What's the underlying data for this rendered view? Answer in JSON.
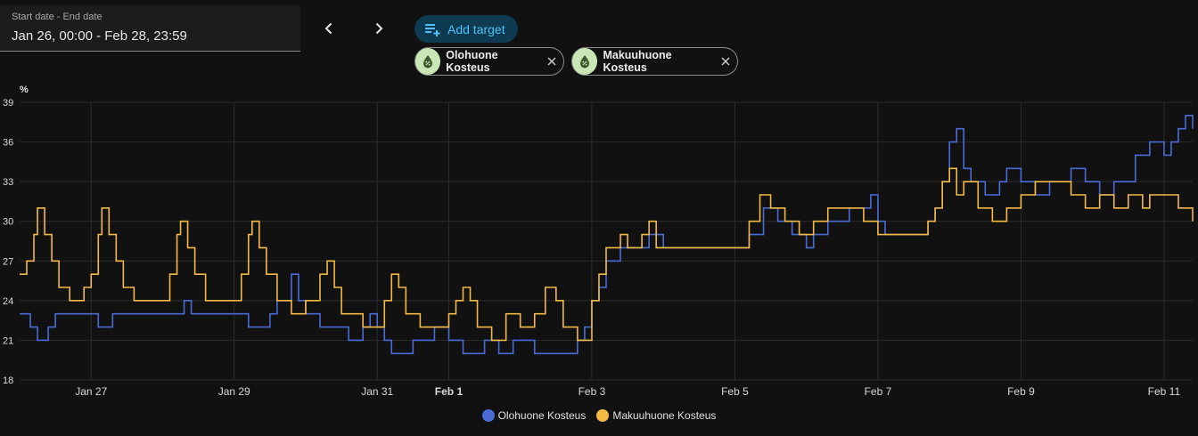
{
  "date_range": {
    "label": "Start date - End date",
    "value": "Jan 26, 00:00 - Feb 28, 23:59"
  },
  "add_target_label": "Add target",
  "chips": [
    {
      "label": "Olohuone Kosteus",
      "icon": "water-percent-icon"
    },
    {
      "label": "Makuuhuone Kosteus",
      "icon": "water-percent-icon"
    }
  ],
  "colors": {
    "accent": "#4fc0f7",
    "series1": "#4a6bd6",
    "series2": "#f4b942"
  },
  "chart_data": {
    "type": "line",
    "ylabel": "%",
    "ylim": [
      18,
      39
    ],
    "yticks": [
      18,
      21,
      24,
      27,
      30,
      33,
      36,
      39
    ],
    "xlim": [
      0,
      16.4
    ],
    "xticks": [
      {
        "x": 1,
        "label": "Jan 27",
        "bold": false
      },
      {
        "x": 3,
        "label": "Jan 29",
        "bold": false
      },
      {
        "x": 5,
        "label": "Jan 31",
        "bold": false
      },
      {
        "x": 6,
        "label": "Feb 1",
        "bold": true
      },
      {
        "x": 8,
        "label": "Feb 3",
        "bold": false
      },
      {
        "x": 10,
        "label": "Feb 5",
        "bold": false
      },
      {
        "x": 12,
        "label": "Feb 7",
        "bold": false
      },
      {
        "x": 14,
        "label": "Feb 9",
        "bold": false
      },
      {
        "x": 16,
        "label": "Feb 11",
        "bold": false
      }
    ],
    "grid": true,
    "legend_position": "bottom",
    "series": [
      {
        "name": "Olohuone Kosteus",
        "points": [
          [
            0,
            23
          ],
          [
            0.15,
            22
          ],
          [
            0.25,
            21
          ],
          [
            0.4,
            22
          ],
          [
            0.5,
            23
          ],
          [
            1.0,
            23
          ],
          [
            1.1,
            22
          ],
          [
            1.3,
            23
          ],
          [
            2.2,
            23
          ],
          [
            2.3,
            24
          ],
          [
            2.4,
            23
          ],
          [
            3.0,
            23
          ],
          [
            3.2,
            22
          ],
          [
            3.5,
            23
          ],
          [
            3.6,
            24
          ],
          [
            3.8,
            26
          ],
          [
            3.9,
            24
          ],
          [
            4.0,
            23
          ],
          [
            4.2,
            22
          ],
          [
            4.6,
            21
          ],
          [
            4.8,
            22
          ],
          [
            4.9,
            23
          ],
          [
            5.0,
            22
          ],
          [
            5.1,
            21
          ],
          [
            5.2,
            20
          ],
          [
            5.5,
            21
          ],
          [
            5.8,
            22
          ],
          [
            6.0,
            21
          ],
          [
            6.2,
            20
          ],
          [
            6.5,
            21
          ],
          [
            6.7,
            20
          ],
          [
            6.9,
            21
          ],
          [
            7.2,
            20
          ],
          [
            7.6,
            20
          ],
          [
            7.8,
            21
          ],
          [
            7.9,
            22
          ],
          [
            8.0,
            24
          ],
          [
            8.1,
            25
          ],
          [
            8.2,
            27
          ],
          [
            8.4,
            28
          ],
          [
            8.8,
            29
          ],
          [
            9.0,
            28
          ],
          [
            9.5,
            28
          ],
          [
            9.8,
            28
          ],
          [
            10.0,
            28
          ],
          [
            10.2,
            29
          ],
          [
            10.4,
            31
          ],
          [
            10.6,
            30
          ],
          [
            10.8,
            29
          ],
          [
            11.0,
            28
          ],
          [
            11.1,
            29
          ],
          [
            11.3,
            30
          ],
          [
            11.6,
            31
          ],
          [
            11.8,
            31
          ],
          [
            11.9,
            32
          ],
          [
            12.0,
            30
          ],
          [
            12.1,
            29
          ],
          [
            12.5,
            29
          ],
          [
            12.7,
            30
          ],
          [
            12.8,
            31
          ],
          [
            12.9,
            33
          ],
          [
            13.0,
            36
          ],
          [
            13.1,
            37
          ],
          [
            13.2,
            34
          ],
          [
            13.3,
            33
          ],
          [
            13.5,
            32
          ],
          [
            13.7,
            33
          ],
          [
            13.8,
            34
          ],
          [
            14.0,
            33
          ],
          [
            14.2,
            32
          ],
          [
            14.4,
            33
          ],
          [
            14.7,
            34
          ],
          [
            14.9,
            33
          ],
          [
            15.1,
            32
          ],
          [
            15.3,
            33
          ],
          [
            15.6,
            35
          ],
          [
            15.8,
            36
          ],
          [
            16.0,
            35
          ],
          [
            16.1,
            36
          ],
          [
            16.2,
            37
          ],
          [
            16.3,
            38
          ],
          [
            16.4,
            37
          ]
        ]
      },
      {
        "name": "Makuuhuone Kosteus",
        "points": [
          [
            0,
            26
          ],
          [
            0.1,
            27
          ],
          [
            0.2,
            29
          ],
          [
            0.25,
            31
          ],
          [
            0.35,
            29
          ],
          [
            0.45,
            27
          ],
          [
            0.55,
            25
          ],
          [
            0.7,
            24
          ],
          [
            0.9,
            25
          ],
          [
            1.0,
            26
          ],
          [
            1.1,
            29
          ],
          [
            1.15,
            31
          ],
          [
            1.25,
            29
          ],
          [
            1.35,
            27
          ],
          [
            1.45,
            25
          ],
          [
            1.6,
            24
          ],
          [
            2.0,
            24
          ],
          [
            2.1,
            26
          ],
          [
            2.2,
            29
          ],
          [
            2.25,
            30
          ],
          [
            2.35,
            28
          ],
          [
            2.45,
            26
          ],
          [
            2.6,
            24
          ],
          [
            3.0,
            24
          ],
          [
            3.1,
            26
          ],
          [
            3.2,
            29
          ],
          [
            3.25,
            30
          ],
          [
            3.35,
            28
          ],
          [
            3.45,
            26
          ],
          [
            3.6,
            24
          ],
          [
            3.8,
            23
          ],
          [
            4.0,
            24
          ],
          [
            4.2,
            26
          ],
          [
            4.3,
            27
          ],
          [
            4.4,
            25
          ],
          [
            4.5,
            23
          ],
          [
            4.8,
            22
          ],
          [
            5.0,
            22
          ],
          [
            5.1,
            24
          ],
          [
            5.2,
            26
          ],
          [
            5.3,
            25
          ],
          [
            5.4,
            23
          ],
          [
            5.6,
            22
          ],
          [
            6.0,
            23
          ],
          [
            6.1,
            24
          ],
          [
            6.2,
            25
          ],
          [
            6.3,
            24
          ],
          [
            6.4,
            22
          ],
          [
            6.6,
            21
          ],
          [
            6.8,
            23
          ],
          [
            7.0,
            22
          ],
          [
            7.2,
            23
          ],
          [
            7.35,
            25
          ],
          [
            7.5,
            24
          ],
          [
            7.6,
            22
          ],
          [
            7.8,
            21
          ],
          [
            8.0,
            24
          ],
          [
            8.1,
            26
          ],
          [
            8.2,
            28
          ],
          [
            8.4,
            29
          ],
          [
            8.5,
            28
          ],
          [
            8.7,
            29
          ],
          [
            8.8,
            30
          ],
          [
            8.9,
            28
          ],
          [
            9.2,
            28
          ],
          [
            9.8,
            28
          ],
          [
            10.0,
            28
          ],
          [
            10.2,
            30
          ],
          [
            10.35,
            32
          ],
          [
            10.5,
            31
          ],
          [
            10.7,
            30
          ],
          [
            10.9,
            29
          ],
          [
            11.1,
            30
          ],
          [
            11.3,
            31
          ],
          [
            11.5,
            31
          ],
          [
            11.8,
            30
          ],
          [
            12.0,
            29
          ],
          [
            12.3,
            29
          ],
          [
            12.5,
            29
          ],
          [
            12.7,
            30
          ],
          [
            12.8,
            31
          ],
          [
            12.9,
            33
          ],
          [
            13.0,
            34
          ],
          [
            13.1,
            32
          ],
          [
            13.2,
            33
          ],
          [
            13.4,
            31
          ],
          [
            13.6,
            30
          ],
          [
            13.8,
            31
          ],
          [
            14.0,
            32
          ],
          [
            14.2,
            33
          ],
          [
            14.5,
            33
          ],
          [
            14.7,
            32
          ],
          [
            14.9,
            31
          ],
          [
            15.1,
            32
          ],
          [
            15.3,
            31
          ],
          [
            15.5,
            32
          ],
          [
            15.7,
            31
          ],
          [
            15.8,
            32
          ],
          [
            16.0,
            32
          ],
          [
            16.2,
            31
          ],
          [
            16.4,
            30
          ]
        ]
      }
    ]
  }
}
